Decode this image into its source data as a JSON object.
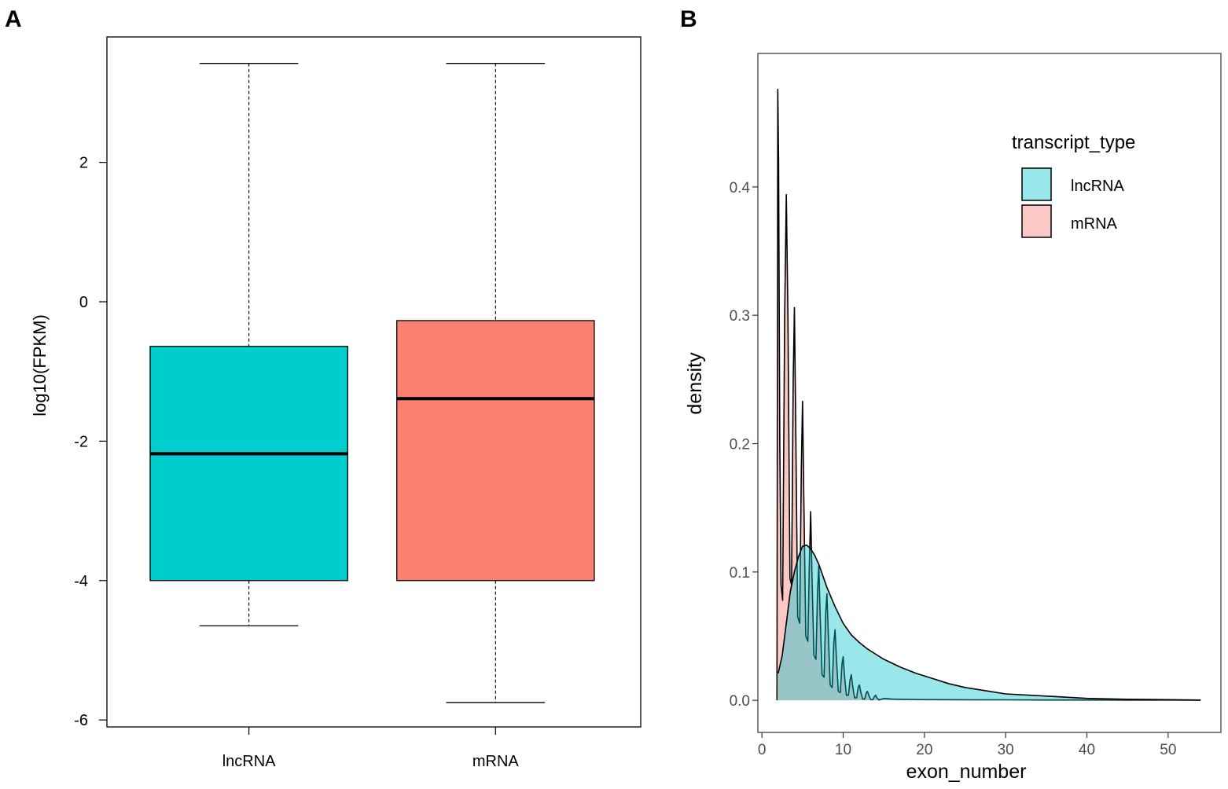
{
  "chart_data": [
    {
      "panel": "A",
      "type": "boxplot",
      "ylabel": "log10(FPKM)",
      "xlabel": "",
      "ylim": [
        -6.1,
        3.8
      ],
      "yticks": [
        -6,
        -4,
        -2,
        0,
        2
      ],
      "categories": [
        "lncRNA",
        "mRNA"
      ],
      "boxes": [
        {
          "name": "lncRNA",
          "color": "#00CDCD",
          "whisker_low": -4.65,
          "q1": -4.0,
          "median": -2.18,
          "q3": -0.64,
          "whisker_high": 3.42
        },
        {
          "name": "mRNA",
          "color": "#FA8072",
          "whisker_low": -5.75,
          "q1": -4.0,
          "median": -1.39,
          "q3": -0.27,
          "whisker_high": 3.42
        }
      ]
    },
    {
      "panel": "B",
      "type": "area",
      "xlabel": "exon_number",
      "ylabel": "density",
      "xlim": [
        -0.5,
        56.5
      ],
      "ylim": [
        -0.025,
        0.504
      ],
      "xticks": [
        0,
        10,
        20,
        30,
        40,
        50
      ],
      "yticks": [
        0.0,
        0.1,
        0.2,
        0.3,
        0.4
      ],
      "legend": {
        "title": "transcript_type",
        "position": "top-right"
      },
      "series": [
        {
          "name": "lncRNA",
          "color": "#00C4CC",
          "x": [
            2,
            2.5,
            3,
            3.5,
            4,
            4.5,
            5,
            5.5,
            6,
            6.5,
            7,
            7.5,
            8,
            9,
            10,
            11,
            12,
            13,
            14,
            15,
            17,
            19,
            21,
            23,
            25,
            27,
            30,
            33,
            36,
            40,
            45,
            50,
            54
          ],
          "y": [
            0.021,
            0.035,
            0.06,
            0.085,
            0.1,
            0.112,
            0.12,
            0.121,
            0.118,
            0.113,
            0.106,
            0.097,
            0.088,
            0.073,
            0.06,
            0.051,
            0.045,
            0.04,
            0.036,
            0.032,
            0.026,
            0.021,
            0.017,
            0.013,
            0.01,
            0.008,
            0.005,
            0.004,
            0.003,
            0.0015,
            0.0008,
            0.0005,
            0.0002
          ]
        },
        {
          "name": "mRNA",
          "color": "#F8766D",
          "x": [
            1.85,
            1.95,
            2.05,
            2.2,
            2.35,
            2.55,
            2.8,
            3,
            3.2,
            3.45,
            3.65,
            3.85,
            4,
            4.15,
            4.4,
            4.65,
            4.85,
            5,
            5.15,
            5.4,
            5.65,
            5.85,
            6,
            6.15,
            6.4,
            6.65,
            6.85,
            7,
            7.15,
            7.4,
            7.65,
            7.85,
            8,
            8.15,
            8.4,
            8.65,
            8.85,
            9,
            9.15,
            9.4,
            9.65,
            9.85,
            10,
            10.15,
            10.4,
            10.65,
            10.85,
            11,
            11.15,
            11.4,
            11.65,
            11.85,
            12,
            12.15,
            12.4,
            12.65,
            12.85,
            13,
            13.15,
            13.4,
            13.65,
            13.85,
            14,
            14.15,
            14.4,
            15,
            16,
            17,
            19,
            22,
            26,
            30,
            35,
            40,
            45,
            50,
            54
          ],
          "y": [
            0.0,
            0.476,
            0.42,
            0.2,
            0.09,
            0.078,
            0.3,
            0.394,
            0.3,
            0.095,
            0.09,
            0.25,
            0.306,
            0.22,
            0.065,
            0.06,
            0.18,
            0.233,
            0.16,
            0.05,
            0.046,
            0.11,
            0.147,
            0.1,
            0.035,
            0.032,
            0.085,
            0.105,
            0.07,
            0.02,
            0.018,
            0.068,
            0.083,
            0.055,
            0.012,
            0.01,
            0.045,
            0.055,
            0.035,
            0.007,
            0.006,
            0.028,
            0.034,
            0.02,
            0.004,
            0.004,
            0.016,
            0.02,
            0.012,
            0.002,
            0.002,
            0.01,
            0.012,
            0.007,
            0.001,
            0.001,
            0.006,
            0.007,
            0.004,
            0.0005,
            0.0005,
            0.003,
            0.004,
            0.002,
            0.0003,
            0.0015,
            0.001,
            0.0008,
            0.0006,
            0.0005,
            0.0004,
            0.0004,
            0.0003,
            0.0003,
            0.0002,
            0.0002,
            0.0001
          ]
        }
      ]
    }
  ],
  "panels": {
    "a_label": "A",
    "b_label": "B"
  }
}
